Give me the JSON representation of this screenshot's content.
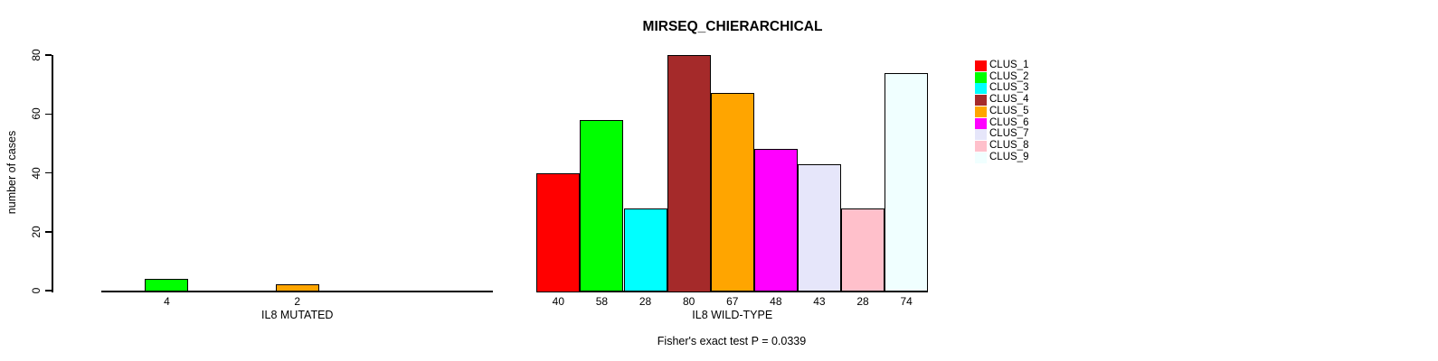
{
  "chart_data": {
    "type": "bar",
    "title": "MIRSEQ_CHIERARCHICAL",
    "xlabel": "",
    "ylabel": "number of cases",
    "ylim": [
      0,
      80
    ],
    "yticks": [
      "0",
      "20",
      "40",
      "60",
      "80"
    ],
    "grid": false,
    "legend_position": "top-right",
    "legend_entries": [
      "CLUS_1",
      "CLUS_2",
      "CLUS_3",
      "CLUS_4",
      "CLUS_5",
      "CLUS_6",
      "CLUS_7",
      "CLUS_8",
      "CLUS_9"
    ],
    "colors": [
      "#FF0000",
      "#00FF00",
      "#00FFFF",
      "#A52A2A",
      "#FFA500",
      "#FF00FF",
      "#E6E6FA",
      "#FFC0CB",
      "#F0FFFF"
    ],
    "axis_color": "#000000",
    "bar_border_color": "#000000",
    "groups": [
      {
        "label": "IL8 MUTATED",
        "values": [
          0,
          4,
          0,
          0,
          2,
          0,
          0,
          0,
          0
        ]
      },
      {
        "label": "IL8 WILD-TYPE",
        "values": [
          40,
          58,
          28,
          80,
          67,
          48,
          43,
          28,
          74
        ]
      }
    ],
    "annotation": "Fisher's exact test P = 0.0339"
  }
}
